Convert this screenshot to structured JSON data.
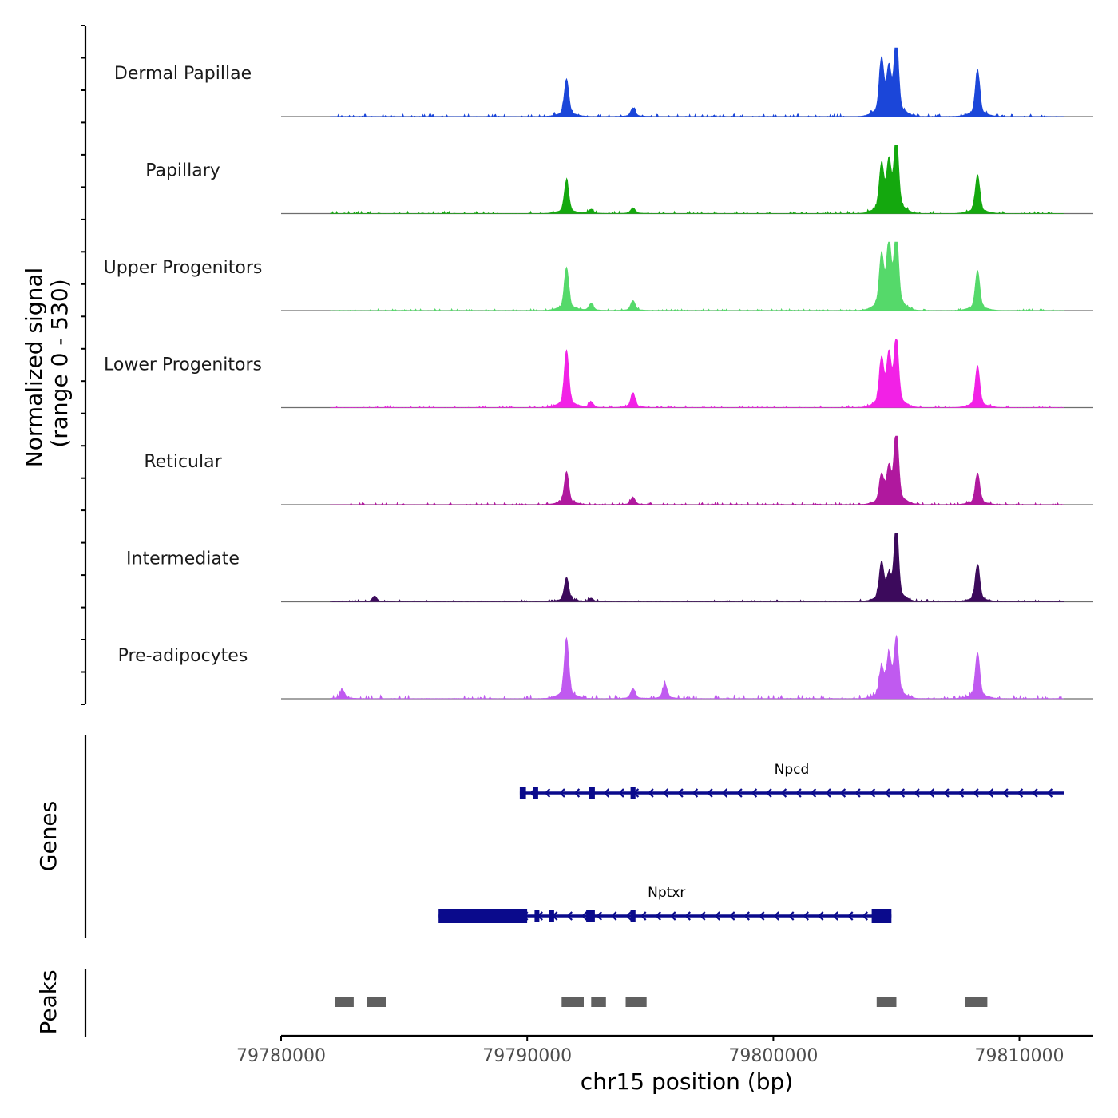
{
  "chart_data": {
    "type": "area",
    "chromosome": "chr15",
    "x_range": [
      79780000,
      79813000
    ],
    "xlabel": "chr15 position (bp)",
    "x_ticks": [
      79780000,
      79790000,
      79800000,
      79810000
    ],
    "x_tick_labels": [
      "79780000",
      "79790000",
      "79800000",
      "79810000"
    ],
    "ylabel_line1": "Normalized signal",
    "ylabel_line2": "(range 0 - 530)",
    "y_range": [
      0,
      530
    ],
    "signal_x_start": 79782000,
    "signal_x_end": 79811800,
    "peak_positions": [
      79782500,
      79783800,
      79791600,
      79792600,
      79794300,
      79795600,
      79804400,
      79804700,
      79805000,
      79808300
    ],
    "series": [
      {
        "name": "Dermal Papillae",
        "color": "#1b46d9",
        "peaks": [
          {
            "x": 79791600,
            "h": 260
          },
          {
            "x": 79794300,
            "h": 60
          },
          {
            "x": 79804400,
            "h": 380
          },
          {
            "x": 79804700,
            "h": 300
          },
          {
            "x": 79805000,
            "h": 520
          },
          {
            "x": 79808300,
            "h": 320
          }
        ],
        "noise": 20
      },
      {
        "name": "Papillary",
        "color": "#14a80e",
        "peaks": [
          {
            "x": 79791600,
            "h": 230
          },
          {
            "x": 79792600,
            "h": 30
          },
          {
            "x": 79794300,
            "h": 40
          },
          {
            "x": 79804400,
            "h": 320
          },
          {
            "x": 79804700,
            "h": 330
          },
          {
            "x": 79805000,
            "h": 520
          },
          {
            "x": 79808300,
            "h": 270
          }
        ],
        "noise": 18
      },
      {
        "name": "Upper Progenitors",
        "color": "#55d96a",
        "peaks": [
          {
            "x": 79791600,
            "h": 300
          },
          {
            "x": 79792600,
            "h": 50
          },
          {
            "x": 79794300,
            "h": 70
          },
          {
            "x": 79804400,
            "h": 360
          },
          {
            "x": 79804700,
            "h": 440
          },
          {
            "x": 79805000,
            "h": 520
          },
          {
            "x": 79808300,
            "h": 280
          }
        ],
        "noise": 14
      },
      {
        "name": "Lower Progenitors",
        "color": "#f221e6",
        "peaks": [
          {
            "x": 79791600,
            "h": 400
          },
          {
            "x": 79792600,
            "h": 40
          },
          {
            "x": 79794300,
            "h": 100
          },
          {
            "x": 79804400,
            "h": 320
          },
          {
            "x": 79804700,
            "h": 340
          },
          {
            "x": 79805000,
            "h": 470
          },
          {
            "x": 79808300,
            "h": 290
          }
        ],
        "noise": 16
      },
      {
        "name": "Reticular",
        "color": "#b0189e",
        "peaks": [
          {
            "x": 79791600,
            "h": 230
          },
          {
            "x": 79794300,
            "h": 50
          },
          {
            "x": 79804400,
            "h": 190
          },
          {
            "x": 79804700,
            "h": 230
          },
          {
            "x": 79805000,
            "h": 520
          },
          {
            "x": 79808300,
            "h": 220
          }
        ],
        "noise": 18
      },
      {
        "name": "Intermediate",
        "color": "#3c0a5c",
        "peaks": [
          {
            "x": 79791600,
            "h": 170
          },
          {
            "x": 79792600,
            "h": 25
          },
          {
            "x": 79783800,
            "h": 40
          },
          {
            "x": 79804400,
            "h": 260
          },
          {
            "x": 79804700,
            "h": 150
          },
          {
            "x": 79805000,
            "h": 520
          },
          {
            "x": 79808300,
            "h": 260
          }
        ],
        "noise": 18
      },
      {
        "name": "Pre-adipocytes",
        "color": "#c05af0",
        "peaks": [
          {
            "x": 79782500,
            "h": 60
          },
          {
            "x": 79791600,
            "h": 420
          },
          {
            "x": 79794300,
            "h": 70
          },
          {
            "x": 79795600,
            "h": 100
          },
          {
            "x": 79804400,
            "h": 200
          },
          {
            "x": 79804700,
            "h": 280
          },
          {
            "x": 79805000,
            "h": 400
          },
          {
            "x": 79808300,
            "h": 320
          }
        ],
        "noise": 30
      }
    ],
    "genes_label": "Genes",
    "genes": [
      {
        "name": "Npcd",
        "strand": "-",
        "start": 79789700,
        "end": 79811800,
        "exons": [
          [
            79789700,
            79789950
          ],
          [
            79790250,
            79790400
          ],
          [
            79792500,
            79792750
          ],
          [
            79794200,
            79794400
          ]
        ]
      },
      {
        "name": "Nptxr",
        "strand": "-",
        "start": 79786400,
        "end": 79804800,
        "exons": [
          [
            79786400,
            79790000
          ],
          [
            79790300,
            79790450
          ],
          [
            79790900,
            79791050
          ],
          [
            79792400,
            79792750
          ],
          [
            79794200,
            79794400
          ],
          [
            79804000,
            79804800
          ]
        ]
      }
    ],
    "gene_color": "#0a0a8c",
    "peaks_label": "Peaks",
    "peaks_color": "#606060",
    "peaks": [
      [
        79782200,
        79782950
      ],
      [
        79783500,
        79784250
      ],
      [
        79791400,
        79792300
      ],
      [
        79792600,
        79793200
      ],
      [
        79794000,
        79794850
      ],
      [
        79804200,
        79805000
      ],
      [
        79807800,
        79808700
      ]
    ]
  }
}
